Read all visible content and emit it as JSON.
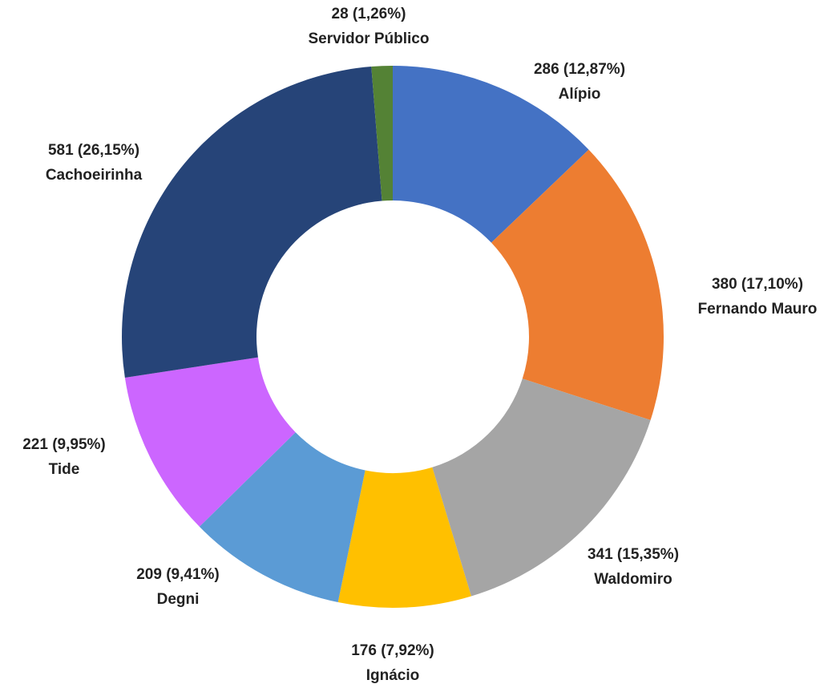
{
  "chart_data": {
    "type": "donut",
    "categories": [
      "Alípio",
      "Fernando Mauro",
      "Waldomiro",
      "Ignácio",
      "Degni",
      "Tide",
      "Cachoeirinha",
      "Servidor Público"
    ],
    "values": [
      286,
      380,
      341,
      176,
      209,
      221,
      581,
      28
    ],
    "value_labels": [
      "286 (12,87%)",
      "380 (17,10%)",
      "341 (15,35%)",
      "176 (7,92%)",
      "209 (9,41%)",
      "221 (9,95%)",
      "581 (26,15%)",
      "28 (1,26%)"
    ],
    "colors": [
      "#4472c4",
      "#ed7d31",
      "#a5a5a5",
      "#ffc000",
      "#5b9bd5",
      "#cc66ff",
      "#264478",
      "#548235"
    ]
  }
}
